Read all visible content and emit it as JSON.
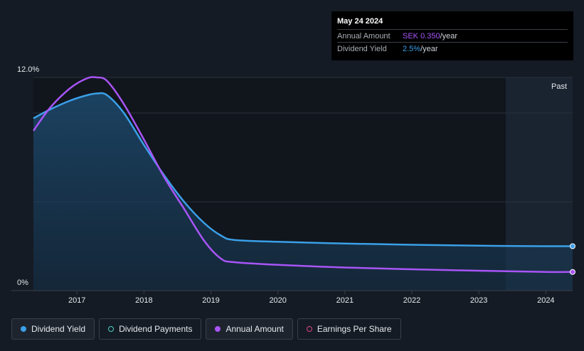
{
  "chart_data": {
    "type": "line",
    "title": "",
    "xlabel": "",
    "ylabel": "",
    "ylim": [
      0,
      12
    ],
    "y_ticks": [
      "12.0%",
      "0%"
    ],
    "x_ticks": [
      "2017",
      "2018",
      "2019",
      "2020",
      "2021",
      "2022",
      "2023",
      "2024"
    ],
    "x_tick_values": [
      2017,
      2018,
      2019,
      2020,
      2021,
      2022,
      2023,
      2024
    ],
    "xlim": [
      2016.35,
      2024.4
    ],
    "past_region_start": 2023.4,
    "past_label": "Past",
    "series": [
      {
        "name": "Dividend Yield",
        "color": "#3aa0e8",
        "fill": true,
        "x": [
          2016.35,
          2016.6,
          2016.9,
          2017.15,
          2017.3,
          2017.45,
          2017.7,
          2018.0,
          2018.3,
          2018.6,
          2018.9,
          2019.15,
          2019.35,
          2020.0,
          2021.0,
          2022.0,
          2023.0,
          2024.0,
          2024.4
        ],
        "values": [
          9.7,
          10.2,
          10.7,
          11.0,
          11.1,
          11.0,
          10.0,
          8.2,
          6.5,
          5.0,
          3.8,
          3.1,
          2.85,
          2.75,
          2.65,
          2.58,
          2.53,
          2.5,
          2.5
        ]
      },
      {
        "name": "Annual Amount",
        "color": "#a855f7",
        "fill": false,
        "x": [
          2016.35,
          2016.6,
          2016.9,
          2017.15,
          2017.3,
          2017.45,
          2017.7,
          2018.0,
          2018.3,
          2018.6,
          2018.9,
          2019.15,
          2019.35,
          2020.0,
          2021.0,
          2022.0,
          2023.0,
          2024.0,
          2024.4
        ],
        "values": [
          9.0,
          10.3,
          11.4,
          11.95,
          12.0,
          11.8,
          10.5,
          8.5,
          6.4,
          4.6,
          2.8,
          1.8,
          1.6,
          1.45,
          1.3,
          1.2,
          1.12,
          1.05,
          1.05
        ]
      }
    ]
  },
  "tooltip": {
    "date": "May 24 2024",
    "rows": [
      {
        "key": "Annual Amount",
        "value": "SEK 0.350",
        "unit": "/year"
      },
      {
        "key": "Dividend Yield",
        "value": "2.5%",
        "unit": "/year"
      }
    ]
  },
  "legend": [
    {
      "label": "Dividend Yield",
      "active": true
    },
    {
      "label": "Dividend Payments",
      "active": false
    },
    {
      "label": "Annual Amount",
      "active": true
    },
    {
      "label": "Earnings Per Share",
      "active": false
    }
  ]
}
